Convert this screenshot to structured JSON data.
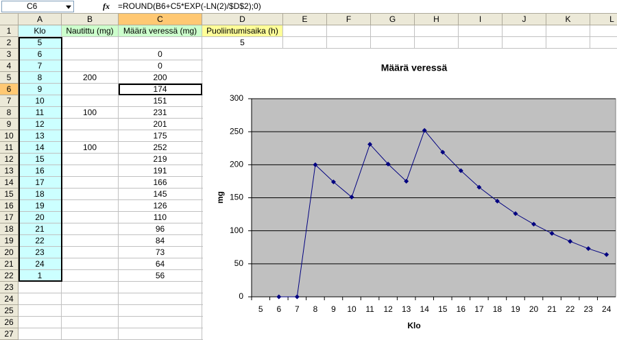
{
  "formula_bar": {
    "name_box": "C6",
    "fx": "fx",
    "formula": "=ROUND(B6+C5*EXP(-LN(2)/$D$2);0)"
  },
  "sheet": {
    "columns": [
      "A",
      "B",
      "C",
      "D",
      "E",
      "F",
      "G",
      "H",
      "I",
      "J",
      "K",
      "L"
    ],
    "row_numbers": [
      1,
      2,
      3,
      4,
      5,
      6,
      7,
      8,
      9,
      10,
      11,
      12,
      13,
      14,
      15,
      16,
      17,
      18,
      19,
      20,
      21,
      22,
      23,
      24,
      25,
      26,
      27
    ],
    "rows": [
      [
        "Klo",
        "Nautittu (mg)",
        "Määrä veressä (mg)",
        "Puoliintumisaika (h)"
      ],
      [
        5,
        null,
        null,
        5
      ],
      [
        6,
        null,
        0,
        null
      ],
      [
        7,
        null,
        0,
        null
      ],
      [
        8,
        200,
        200,
        null
      ],
      [
        9,
        null,
        174,
        null
      ],
      [
        10,
        null,
        151,
        null
      ],
      [
        11,
        100,
        231,
        null
      ],
      [
        12,
        null,
        201,
        null
      ],
      [
        13,
        null,
        175,
        null
      ],
      [
        14,
        100,
        252,
        null
      ],
      [
        15,
        null,
        219,
        null
      ],
      [
        16,
        null,
        191,
        null
      ],
      [
        17,
        null,
        166,
        null
      ],
      [
        18,
        null,
        145,
        null
      ],
      [
        19,
        null,
        126,
        null
      ],
      [
        20,
        null,
        110,
        null
      ],
      [
        21,
        null,
        96,
        null
      ],
      [
        22,
        null,
        84,
        null
      ],
      [
        23,
        null,
        73,
        null
      ],
      [
        24,
        null,
        64,
        null
      ],
      [
        1,
        null,
        56,
        null
      ]
    ]
  },
  "chart_data": {
    "type": "line",
    "title": "Määrä veressä",
    "x_label": "Klo",
    "y_label": "mg",
    "categories": [
      "5",
      "6",
      "7",
      "8",
      "9",
      "10",
      "11",
      "12",
      "13",
      "14",
      "15",
      "16",
      "17",
      "18",
      "19",
      "20",
      "21",
      "22",
      "23",
      "24"
    ],
    "values": [
      null,
      0,
      0,
      200,
      174,
      151,
      231,
      201,
      175,
      252,
      219,
      191,
      166,
      145,
      126,
      110,
      96,
      84,
      73,
      64
    ],
    "color": "#000080",
    "ylim": [
      0,
      300
    ],
    "yticks": [
      0,
      50,
      100,
      150,
      200,
      250,
      300
    ],
    "grid": true
  }
}
